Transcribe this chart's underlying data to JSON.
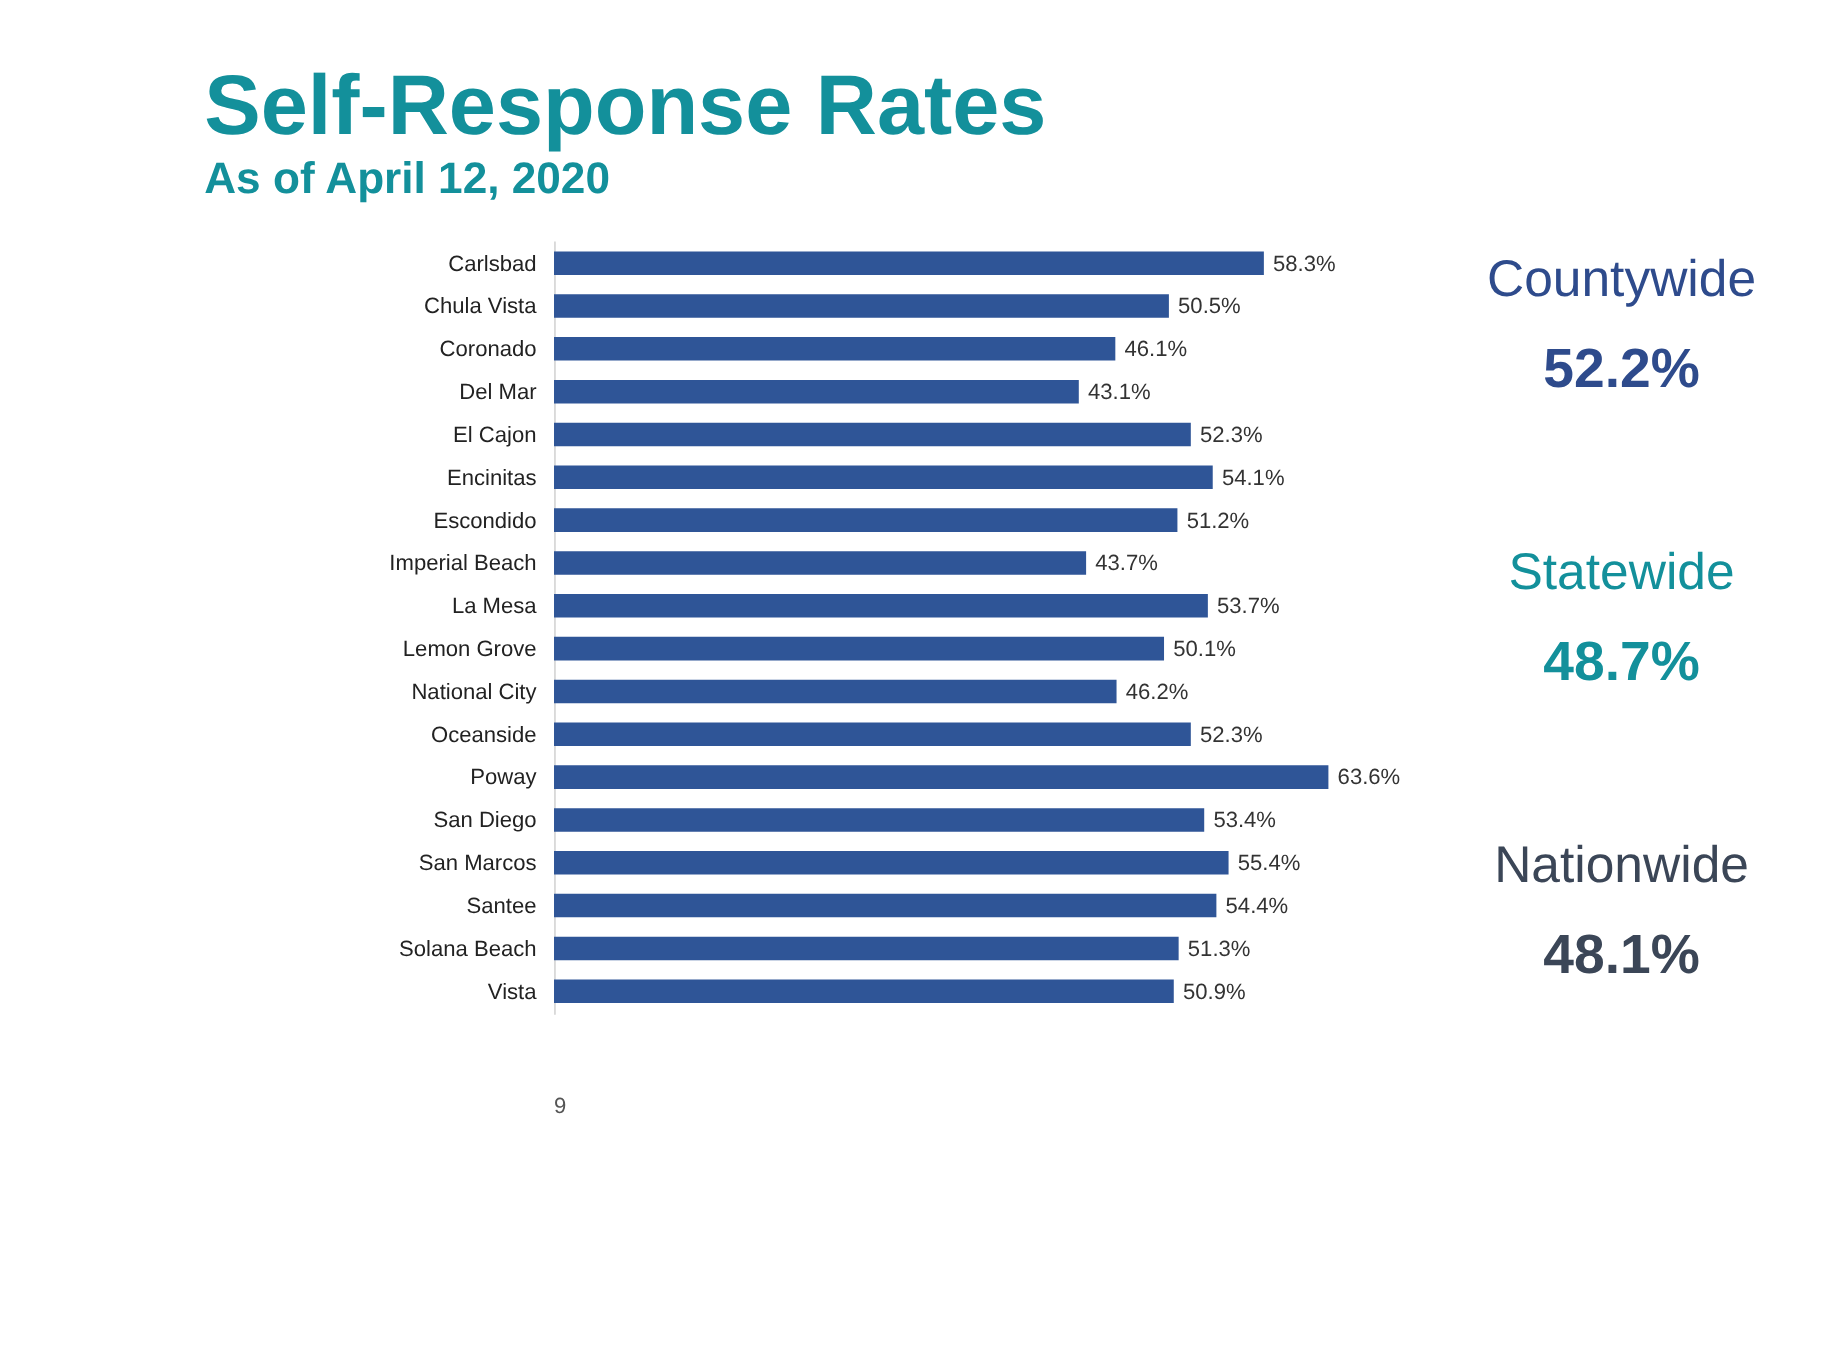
{
  "chart_data": [
    {
      "type": "bar",
      "orientation": "horizontal",
      "title": "Self-Response Rates",
      "subtitle": "As of April 12, 2020",
      "categories": [
        "Carlsbad",
        "Chula Vista",
        "Coronado",
        "Del Mar",
        "El Cajon",
        "Encinitas",
        "Escondido",
        "Imperial Beach",
        "La Mesa",
        "Lemon Grove",
        "National City",
        "Oceanside",
        "Poway",
        "San Diego",
        "San Marcos",
        "Santee",
        "Solana Beach",
        "Vista"
      ],
      "values": [
        58.3,
        50.5,
        46.1,
        43.1,
        52.3,
        54.1,
        51.2,
        43.7,
        53.7,
        50.1,
        46.2,
        52.3,
        63.6,
        53.4,
        55.4,
        54.4,
        51.3,
        50.9
      ],
      "value_labels": [
        "58.3%",
        "50.5%",
        "46.1%",
        "43.1%",
        "52.3%",
        "54.1%",
        "51.2%",
        "43.7%",
        "53.7%",
        "50.1%",
        "46.2%",
        "52.3%",
        "63.6%",
        "53.4%",
        "55.4%",
        "54.4%",
        "51.3%",
        "50.9%"
      ],
      "color": "#2f5597",
      "grid": false,
      "annotations": [
        "9"
      ]
    },
    {
      "type": "other",
      "annotations": [
        "Countywide",
        "52.2%",
        "Statewide",
        "48.7%",
        "Nationwide",
        "48.1%"
      ]
    }
  ]
}
